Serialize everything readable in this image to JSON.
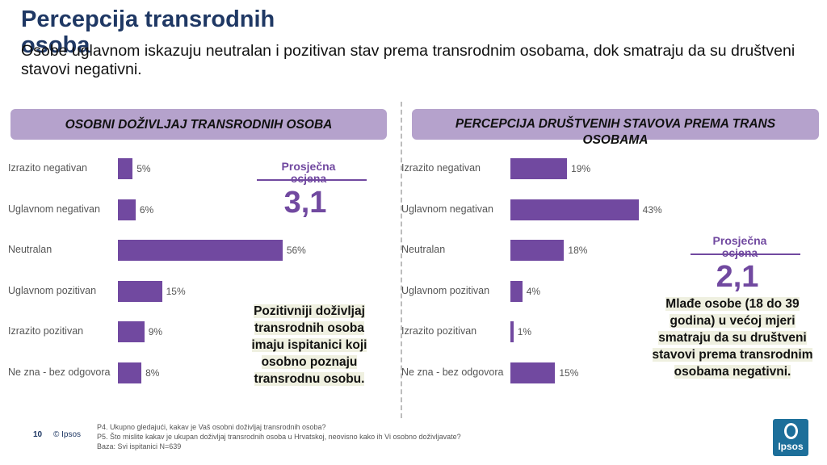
{
  "slide": {
    "title": "Percepcija transrodnih osoba",
    "subtitle": "Osobe uglavnom iskazuju neutralan i pozitivan stav prema transrodnim osobama, dok smatraju da su društveni stavovi negativni.",
    "page_number": "10",
    "brand": "© Ipsos",
    "logo_text": "Ipsos",
    "footnotes": [
      "P4. Ukupno gledajući, kakav je Vaš osobni doživljaj transrodnih osoba?",
      "P5. Što mislite kakav je ukupan doživljaj transrodnih osoba u Hrvatskoj, neovisno kako ih Vi osobno doživljavate?",
      "Baza: Svi ispitanici N=639"
    ]
  },
  "left_panel": {
    "avg_label": "Prosječna ocjena",
    "avg_value": "3,1",
    "note": "Pozitivniji doživljaj transrodnih osoba imaju ispitanici koji osobno poznaju transrodnu osobu."
  },
  "right_panel": {
    "avg_label": "Prosječna ocjena",
    "avg_value": "2,1",
    "note": "Mlađe osobe (18 do 39 godina) u većoj mjeri smatraju da su društveni stavovi prema transrodnim osobama negativni."
  },
  "chart_data": [
    {
      "type": "bar",
      "orientation": "horizontal",
      "title": "OSOBNI DOŽIVLJAJ TRANSRODNIH OSOBA",
      "categories": [
        "Izrazito negativan",
        "Uglavnom negativan",
        "Neutralan",
        "Uglavnom pozitivan",
        "Izrazito pozitivan",
        "Ne zna - bez odgovora"
      ],
      "values": [
        5,
        6,
        56,
        15,
        9,
        8
      ],
      "value_labels": [
        "5%",
        "6%",
        "56%",
        "15%",
        "9%",
        "8%"
      ],
      "unit": "%",
      "xlim": [
        0,
        100
      ],
      "grid": false,
      "color": "#7149a0"
    },
    {
      "type": "bar",
      "orientation": "horizontal",
      "title": "PERCEPCIJA DRUŠTVENIH STAVOVA  PREMA TRANS OSOBAMA",
      "categories": [
        "Izrazito negativan",
        "Uglavnom negativan",
        "Neutralan",
        "Uglavnom pozitivan",
        "Izrazito pozitivan",
        "Ne zna - bez odgovora"
      ],
      "values": [
        19,
        43,
        18,
        4,
        1,
        15
      ],
      "value_labels": [
        "19%",
        "43%",
        "18%",
        "4%",
        "1%",
        "15%"
      ],
      "unit": "%",
      "xlim": [
        0,
        100
      ],
      "grid": false,
      "color": "#7149a0"
    }
  ]
}
